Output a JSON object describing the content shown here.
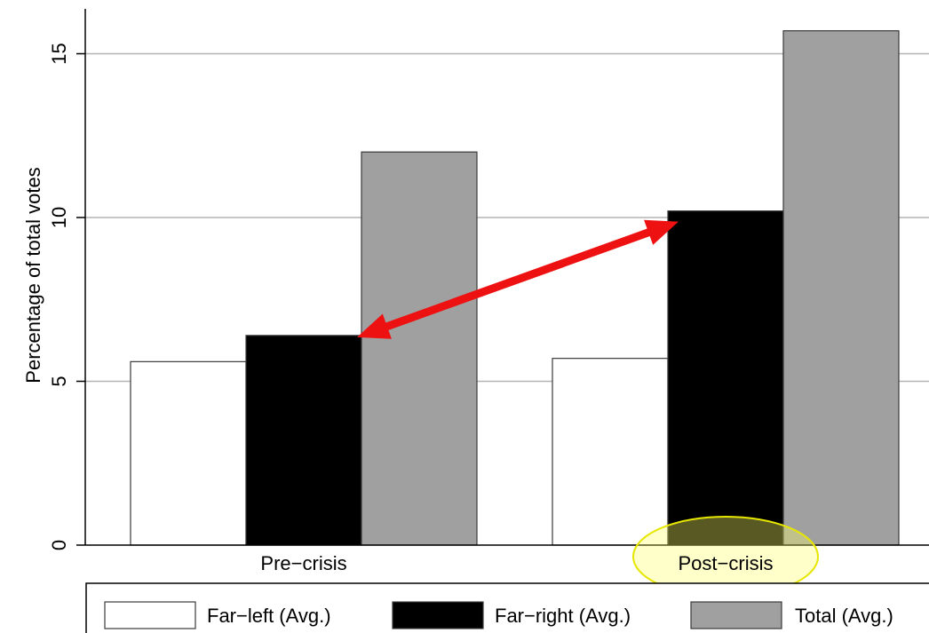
{
  "chart_data": {
    "type": "bar",
    "categories": [
      "Pre−crisis",
      "Post−crisis"
    ],
    "series": [
      {
        "name": "Far−left (Avg.)",
        "values": [
          5.6,
          5.7
        ],
        "color": "#ffffff"
      },
      {
        "name": "Far−right (Avg.)",
        "values": [
          6.4,
          10.2
        ],
        "color": "#000000"
      },
      {
        "name": "Total (Avg.)",
        "values": [
          12.0,
          15.7
        ],
        "color": "#a0a0a0"
      }
    ],
    "ylabel": "Percentage of total votes",
    "ylim": [
      0,
      16.5
    ],
    "yticks": [
      "0",
      "5",
      "10",
      "15"
    ],
    "grid": true,
    "legend_position": "bottom",
    "annotations": {
      "arrow": "double-headed red arrow linking the Far−right bars of Pre−crisis and Post−crisis",
      "arrow_color": "#ee1111",
      "highlight": "yellow ellipse around the Post−crisis label",
      "highlight_color": "#ffff66"
    }
  }
}
